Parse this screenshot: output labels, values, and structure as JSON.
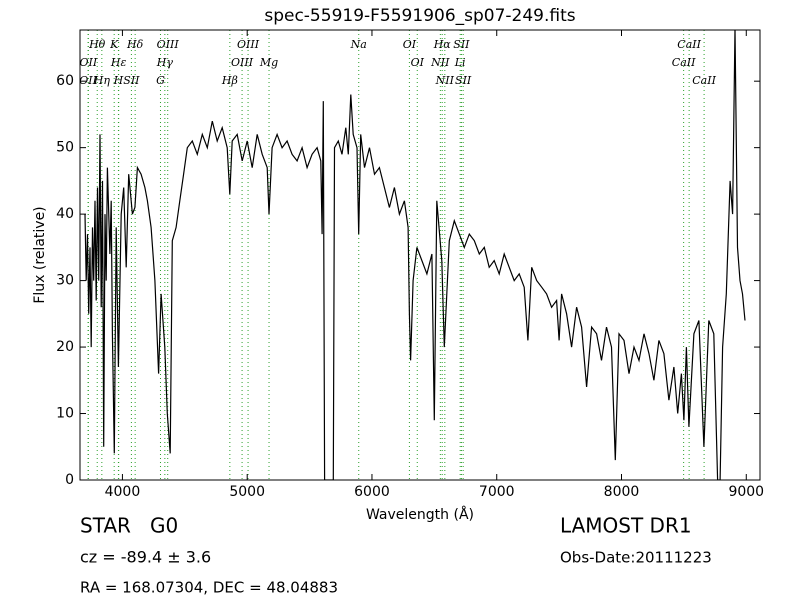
{
  "chart_data": {
    "type": "line",
    "title": "spec-55919-F5591906_sp07-249.fits",
    "x_label": "Wavelength (Å)",
    "y_label": "Flux (relative)",
    "xlim": [
      3660,
      9110
    ],
    "ylim": [
      0,
      67.7
    ],
    "xticks": [
      4000,
      5000,
      6000,
      7000,
      8000,
      9000
    ],
    "yticks": [
      0,
      10,
      20,
      30,
      40,
      50,
      60
    ],
    "color": "#000000",
    "line_color": "#2ca02c",
    "x": [
      3700,
      3710,
      3720,
      3730,
      3740,
      3750,
      3760,
      3770,
      3780,
      3790,
      3800,
      3810,
      3820,
      3830,
      3840,
      3850,
      3860,
      3870,
      3880,
      3900,
      3910,
      3920,
      3935,
      3950,
      3968,
      3990,
      4010,
      4030,
      4050,
      4080,
      4100,
      4120,
      4150,
      4180,
      4200,
      4230,
      4260,
      4290,
      4310,
      4340,
      4360,
      4383,
      4400,
      4430,
      4460,
      4490,
      4520,
      4560,
      4600,
      4640,
      4680,
      4720,
      4760,
      4800,
      4840,
      4861,
      4880,
      4920,
      4960,
      5000,
      5040,
      5080,
      5120,
      5160,
      5175,
      5200,
      5240,
      5280,
      5320,
      5360,
      5400,
      5440,
      5480,
      5520,
      5560,
      5590,
      5600,
      5610,
      5620,
      5690,
      5700,
      5730,
      5760,
      5790,
      5810,
      5830,
      5850,
      5880,
      5894,
      5910,
      5940,
      5980,
      6020,
      6060,
      6100,
      6140,
      6180,
      6220,
      6260,
      6290,
      6300,
      6310,
      6330,
      6360,
      6400,
      6440,
      6480,
      6500,
      6520,
      6560,
      6580,
      6620,
      6660,
      6700,
      6740,
      6780,
      6820,
      6860,
      6900,
      6940,
      6980,
      7020,
      7060,
      7100,
      7140,
      7180,
      7220,
      7250,
      7280,
      7320,
      7360,
      7400,
      7440,
      7480,
      7500,
      7520,
      7560,
      7600,
      7640,
      7680,
      7720,
      7760,
      7800,
      7840,
      7880,
      7920,
      7950,
      7980,
      8020,
      8060,
      8100,
      8140,
      8180,
      8220,
      8260,
      8300,
      8340,
      8380,
      8420,
      8450,
      8480,
      8500,
      8520,
      8540,
      8580,
      8620,
      8660,
      8700,
      8740,
      8770,
      8790,
      8810,
      8840,
      8870,
      8890,
      8910,
      8930,
      8950,
      8970,
      8990
    ],
    "values": [
      40,
      30,
      37,
      25,
      35,
      20,
      38,
      30,
      42,
      27,
      44,
      30,
      52,
      26,
      45,
      5,
      40,
      30,
      47,
      34,
      42,
      22,
      4,
      38,
      17,
      40,
      44,
      32,
      46,
      40,
      41,
      47,
      46,
      44,
      42,
      38,
      30,
      16,
      28,
      20,
      10,
      4,
      36,
      38,
      42,
      46,
      50,
      51,
      49,
      52,
      50,
      54,
      51,
      53,
      50,
      43,
      51,
      52,
      48,
      51,
      47,
      52,
      49,
      47,
      40,
      50,
      52,
      50,
      51,
      49,
      48,
      50,
      47,
      49,
      50,
      48,
      37,
      57,
      0,
      0,
      50,
      51,
      49,
      53,
      49,
      58,
      52,
      50,
      37,
      52,
      47,
      50,
      46,
      47,
      44,
      41,
      44,
      40,
      42,
      38,
      25,
      18,
      30,
      35,
      33,
      31,
      34,
      9,
      42,
      33,
      20,
      36,
      39,
      37,
      35,
      37,
      36,
      34,
      35,
      32,
      33,
      31,
      34,
      32,
      30,
      31,
      29,
      21,
      32,
      30,
      29,
      28,
      26,
      27,
      21,
      28,
      25,
      20,
      26,
      23,
      14,
      23,
      22,
      18,
      23,
      20,
      3,
      22,
      21,
      16,
      20,
      18,
      22,
      19,
      15,
      21,
      19,
      12,
      17,
      10,
      16,
      9,
      20,
      8,
      22,
      24,
      5,
      24,
      22,
      0,
      0,
      20,
      28,
      45,
      40,
      68,
      35,
      30,
      28,
      24
    ],
    "lines": [
      {
        "label": "Hθ",
        "x": 3798
      },
      {
        "label": "K",
        "x": 3934
      },
      {
        "label": "Hδ",
        "x": 4102
      },
      {
        "label": "OIII",
        "x": 4363
      },
      {
        "label": "OIII",
        "x": 5007
      },
      {
        "label": "OI",
        "x": 6300
      },
      {
        "label": "Hα",
        "x": 6563
      },
      {
        "label": "SII",
        "x": 6717
      },
      {
        "label": "CaII",
        "x": 8542
      },
      {
        "label": "OII",
        "x": 3727
      },
      {
        "label": "Hε",
        "x": 3970
      },
      {
        "label": "SII",
        "x": 4072
      },
      {
        "label": "Hγ",
        "x": 4340
      },
      {
        "label": "OIII",
        "x": 4959
      },
      {
        "label": "NII",
        "x": 6548
      },
      {
        "label": "Li",
        "x": 6707
      },
      {
        "label": "CaII",
        "x": 8498
      },
      {
        "label": "OII",
        "x": 3725
      },
      {
        "label": "Hη",
        "x": 3835
      },
      {
        "label": "H",
        "x": 3968
      },
      {
        "label": "G",
        "x": 4305
      },
      {
        "label": "Hβ",
        "x": 4861
      },
      {
        "label": "Mg",
        "x": 5175
      },
      {
        "label": "Na",
        "x": 5894
      },
      {
        "label": "OI",
        "x": 6363
      },
      {
        "label": "NII",
        "x": 6584
      },
      {
        "label": "SII",
        "x": 6731
      },
      {
        "label": "CaII",
        "x": 8662
      }
    ]
  },
  "info": {
    "class": "STAR   G0",
    "survey": "LAMOST DR1",
    "cz": "cz = -89.4 ± 3.6",
    "obs_date": "Obs-Date:20111223",
    "coords": "RA = 168.07304, DEC = 48.04883"
  }
}
